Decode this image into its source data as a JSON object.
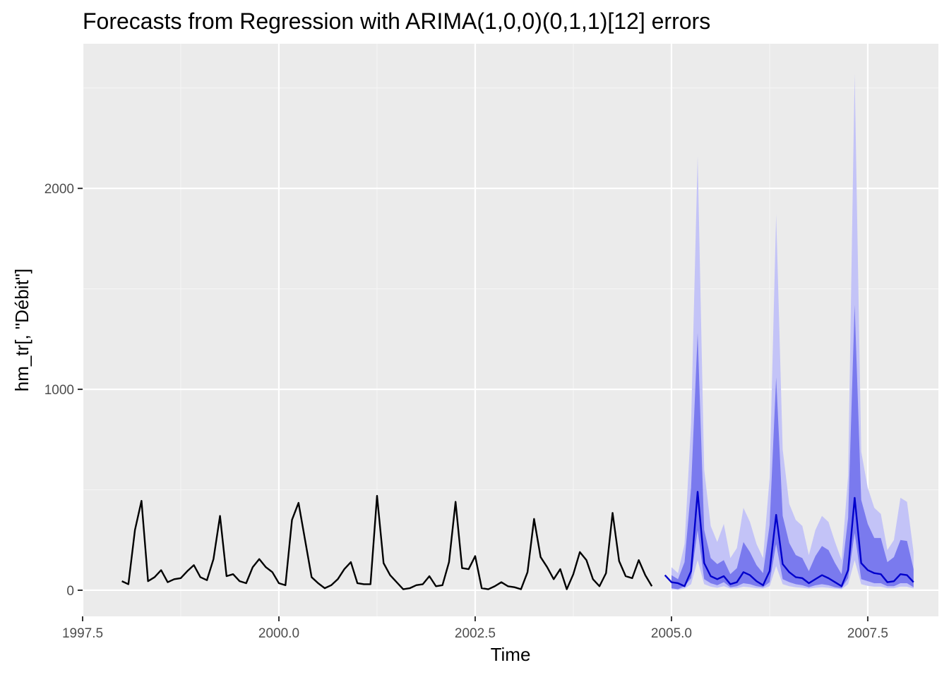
{
  "chart_data": {
    "type": "line",
    "title": "Forecasts from Regression with ARIMA(1,0,0)(0,1,1)[12] errors",
    "xlabel": "Time",
    "ylabel": "hm_tr[, \"Débit\"]",
    "xlim": [
      1997.5,
      2008.4
    ],
    "ylim": [
      -130,
      2720
    ],
    "x_ticks": [
      1997.5,
      2000.0,
      2002.5,
      2005.0,
      2007.5
    ],
    "x_tick_labels": [
      "1997.5",
      "2000.0",
      "2002.5",
      "2005.0",
      "2007.5"
    ],
    "y_ticks": [
      0,
      1000,
      2000
    ],
    "y_tick_labels": [
      "0",
      "1000",
      "2000"
    ],
    "grid": true,
    "legend": "none",
    "series": [
      {
        "role": "observed",
        "x_start": 1998.0,
        "x_step": 0.08333333,
        "values": [
          45,
          30,
          300,
          445,
          45,
          65,
          100,
          40,
          55,
          60,
          95,
          125,
          65,
          50,
          155,
          370,
          70,
          80,
          45,
          35,
          115,
          155,
          115,
          90,
          35,
          25,
          350,
          435,
          250,
          65,
          35,
          10,
          25,
          55,
          105,
          140,
          35,
          30,
          30,
          470,
          135,
          75,
          40,
          5,
          10,
          25,
          30,
          70,
          20,
          25,
          140,
          440,
          110,
          105,
          170,
          10,
          5,
          20,
          40,
          20,
          15,
          5,
          90,
          355,
          165,
          115,
          55,
          105,
          5,
          80,
          190,
          150,
          55,
          20,
          85,
          385,
          145,
          70,
          60,
          150,
          75,
          20
        ]
      },
      {
        "role": "point-forecast",
        "x_start": 2004.9167,
        "x_step": 0.08333333,
        "values": [
          75,
          40,
          35,
          20,
          95,
          490,
          135,
          70,
          55,
          70,
          30,
          40,
          90,
          75,
          45,
          25,
          95,
          375,
          130,
          90,
          65,
          60,
          35,
          55,
          75,
          60,
          40,
          20,
          100,
          460,
          135,
          100,
          85,
          80,
          40,
          45,
          80,
          75,
          40
        ]
      },
      {
        "role": "interval-80",
        "x_start": 2005.0,
        "x_step": 0.08333333,
        "lower": [
          10,
          5,
          20,
          60,
          300,
          55,
          35,
          25,
          40,
          15,
          20,
          35,
          30,
          20,
          15,
          40,
          230,
          55,
          40,
          30,
          25,
          15,
          25,
          30,
          25,
          15,
          10,
          60,
          285,
          55,
          45,
          35,
          35,
          20,
          20,
          35,
          35,
          15
        ],
        "upper": [
          75,
          55,
          140,
          510,
          1280,
          300,
          160,
          130,
          150,
          80,
          110,
          240,
          190,
          125,
          85,
          325,
          1060,
          370,
          235,
          175,
          160,
          95,
          170,
          220,
          200,
          135,
          80,
          360,
          1420,
          450,
          330,
          260,
          260,
          140,
          165,
          250,
          245,
          105
        ]
      },
      {
        "role": "interval-95",
        "x_start": 2005.0,
        "x_step": 0.08333333,
        "lower": [
          5,
          2,
          8,
          30,
          150,
          30,
          18,
          12,
          20,
          8,
          10,
          18,
          15,
          10,
          8,
          20,
          120,
          30,
          20,
          15,
          12,
          8,
          12,
          15,
          12,
          8,
          5,
          30,
          150,
          30,
          22,
          18,
          18,
          10,
          10,
          18,
          18,
          8
        ],
        "upper": [
          115,
          85,
          230,
          830,
          2160,
          600,
          320,
          240,
          330,
          160,
          210,
          410,
          340,
          230,
          160,
          560,
          1870,
          700,
          430,
          350,
          320,
          175,
          300,
          370,
          340,
          240,
          150,
          570,
          2570,
          690,
          510,
          410,
          380,
          200,
          250,
          460,
          440,
          190
        ]
      }
    ],
    "colors": {
      "panel_background": "#ebebeb",
      "grid_major": "#ffffff",
      "grid_minor": "#f5f5f5",
      "observed_line": "#000000",
      "forecast_line": "#0000cc",
      "interval_80": "#7a7aee",
      "interval_95": "#c3c3f7",
      "tick_label": "#4d4d4d",
      "tick_mark": "#333333"
    }
  }
}
